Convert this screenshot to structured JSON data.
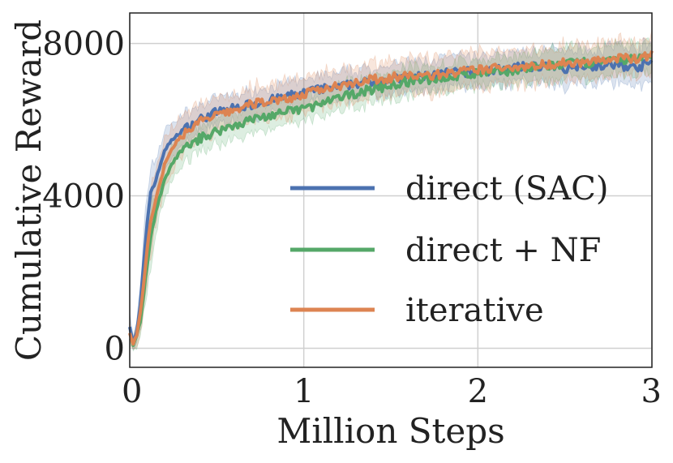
{
  "chart_data": {
    "type": "line",
    "title": "",
    "xlabel": "Million Steps",
    "ylabel": "Cumulative Reward",
    "xlim": [
      0,
      3
    ],
    "ylim": [
      -500,
      8800
    ],
    "xticks": [
      0,
      1,
      2,
      3
    ],
    "yticks": [
      0,
      4000,
      8000
    ],
    "xtick_labels": [
      "0",
      "1",
      "2",
      "3"
    ],
    "ytick_labels": [
      "0",
      "4000",
      "8000"
    ],
    "grid": true,
    "legend_position": "lower-right",
    "series": [
      {
        "name": "direct (SAC)",
        "color": "#4c72b0",
        "x": [
          0,
          0.02,
          0.04,
          0.06,
          0.08,
          0.1,
          0.12,
          0.15,
          0.2,
          0.25,
          0.3,
          0.4,
          0.5,
          0.6,
          0.7,
          0.8,
          0.9,
          1.0,
          1.1,
          1.2,
          1.3,
          1.4,
          1.5,
          1.6,
          1.7,
          1.8,
          1.9,
          2.0,
          2.1,
          2.2,
          2.3,
          2.4,
          2.5,
          2.6,
          2.7,
          2.8,
          2.9,
          3.0
        ],
        "values": [
          600,
          150,
          400,
          1100,
          2200,
          3300,
          4100,
          4400,
          5200,
          5500,
          5700,
          6000,
          6200,
          6300,
          6400,
          6500,
          6600,
          6700,
          6800,
          6850,
          6950,
          7000,
          7050,
          7100,
          7150,
          7200,
          7250,
          7250,
          7300,
          7350,
          7400,
          7400,
          7350,
          7450,
          7400,
          7450,
          7350,
          7500
        ],
        "band": [
          300,
          150,
          300,
          500,
          700,
          800,
          700,
          600,
          500,
          450,
          400,
          350,
          350,
          350,
          350,
          350,
          350,
          350,
          350,
          350,
          350,
          350,
          350,
          400,
          400,
          400,
          400,
          400,
          400,
          400,
          400,
          450,
          450,
          450,
          450,
          500,
          500,
          500
        ]
      },
      {
        "name": "direct + NF",
        "color": "#55a868",
        "x": [
          0,
          0.02,
          0.04,
          0.06,
          0.08,
          0.1,
          0.12,
          0.15,
          0.2,
          0.25,
          0.3,
          0.4,
          0.5,
          0.6,
          0.7,
          0.8,
          0.9,
          1.0,
          1.1,
          1.2,
          1.3,
          1.4,
          1.5,
          1.6,
          1.7,
          1.8,
          1.9,
          2.0,
          2.1,
          2.2,
          2.3,
          2.4,
          2.5,
          2.6,
          2.7,
          2.8,
          2.9,
          3.0
        ],
        "values": [
          300,
          100,
          300,
          700,
          1400,
          2200,
          2900,
          3600,
          4400,
          4900,
          5200,
          5500,
          5700,
          5850,
          6000,
          6100,
          6200,
          6300,
          6400,
          6550,
          6700,
          6800,
          6900,
          7000,
          7050,
          7100,
          7150,
          7200,
          7250,
          7300,
          7350,
          7400,
          7450,
          7500,
          7500,
          7550,
          7600,
          7650
        ],
        "band": [
          250,
          150,
          300,
          500,
          600,
          700,
          700,
          600,
          500,
          450,
          400,
          350,
          350,
          350,
          350,
          350,
          350,
          350,
          350,
          350,
          350,
          350,
          350,
          350,
          350,
          350,
          350,
          350,
          350,
          350,
          350,
          400,
          400,
          400,
          400,
          400,
          400,
          400
        ]
      },
      {
        "name": "iterative",
        "color": "#dd8452",
        "x": [
          0,
          0.02,
          0.04,
          0.06,
          0.08,
          0.1,
          0.12,
          0.15,
          0.2,
          0.25,
          0.3,
          0.4,
          0.5,
          0.6,
          0.7,
          0.8,
          0.9,
          1.0,
          1.1,
          1.2,
          1.3,
          1.4,
          1.5,
          1.6,
          1.7,
          1.8,
          1.9,
          2.0,
          2.1,
          2.2,
          2.3,
          2.4,
          2.5,
          2.6,
          2.7,
          2.8,
          2.9,
          3.0
        ],
        "values": [
          400,
          120,
          350,
          900,
          1700,
          2600,
          3300,
          3900,
          4800,
          5300,
          5600,
          5950,
          6100,
          6250,
          6400,
          6500,
          6550,
          6650,
          6800,
          6900,
          7000,
          7050,
          7100,
          7150,
          7150,
          7200,
          7250,
          7300,
          7350,
          7400,
          7400,
          7450,
          7500,
          7500,
          7550,
          7600,
          7600,
          7700
        ],
        "band": [
          300,
          150,
          300,
          500,
          700,
          800,
          800,
          700,
          600,
          550,
          500,
          450,
          450,
          450,
          450,
          450,
          450,
          450,
          450,
          450,
          450,
          450,
          450,
          450,
          450,
          450,
          450,
          450,
          450,
          450,
          450,
          450,
          450,
          450,
          450,
          450,
          450,
          450
        ]
      }
    ]
  }
}
